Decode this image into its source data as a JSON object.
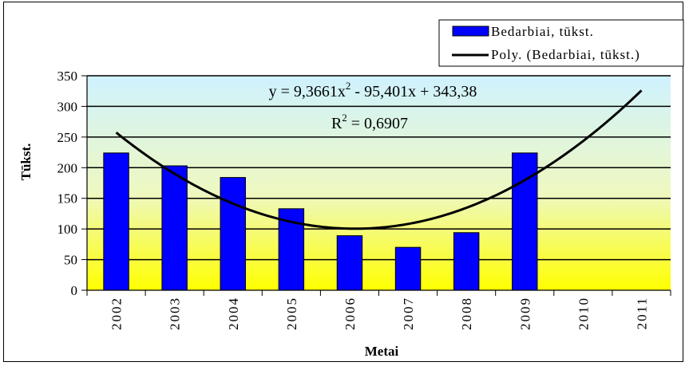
{
  "chart_data": {
    "type": "bar",
    "categories": [
      "2002",
      "2003",
      "2004",
      "2005",
      "2006",
      "2007",
      "2008",
      "2009",
      "2010",
      "2011"
    ],
    "series": [
      {
        "name": "Bedarbiai, tūkst.",
        "values": [
          224,
          203,
          184,
          133,
          89,
          70,
          94,
          224,
          null,
          null
        ],
        "color": "#0000ff"
      }
    ],
    "trendline": {
      "name": "Poly. (Bedarbiai, tūkst.)",
      "type": "polynomial",
      "coefficients": [
        9.3661,
        -95.401,
        343.38
      ],
      "color": "#000000"
    },
    "equation_main": "y = 9,3661x",
    "equation_exp": "2",
    "equation_rest": " - 95,401x + 343,38",
    "r2_main": "R",
    "r2_exp": "2",
    "r2_rest": " = 0,6907",
    "xlabel": "Metai",
    "ylabel": "Tūkst.",
    "ylim": [
      0,
      350
    ],
    "yticks": [
      "0",
      "50",
      "100",
      "150",
      "200",
      "250",
      "300",
      "350"
    ],
    "grid": true,
    "background_gradient": [
      "#cff2ff",
      "#ffff00"
    ],
    "legend_position": "top-right"
  }
}
